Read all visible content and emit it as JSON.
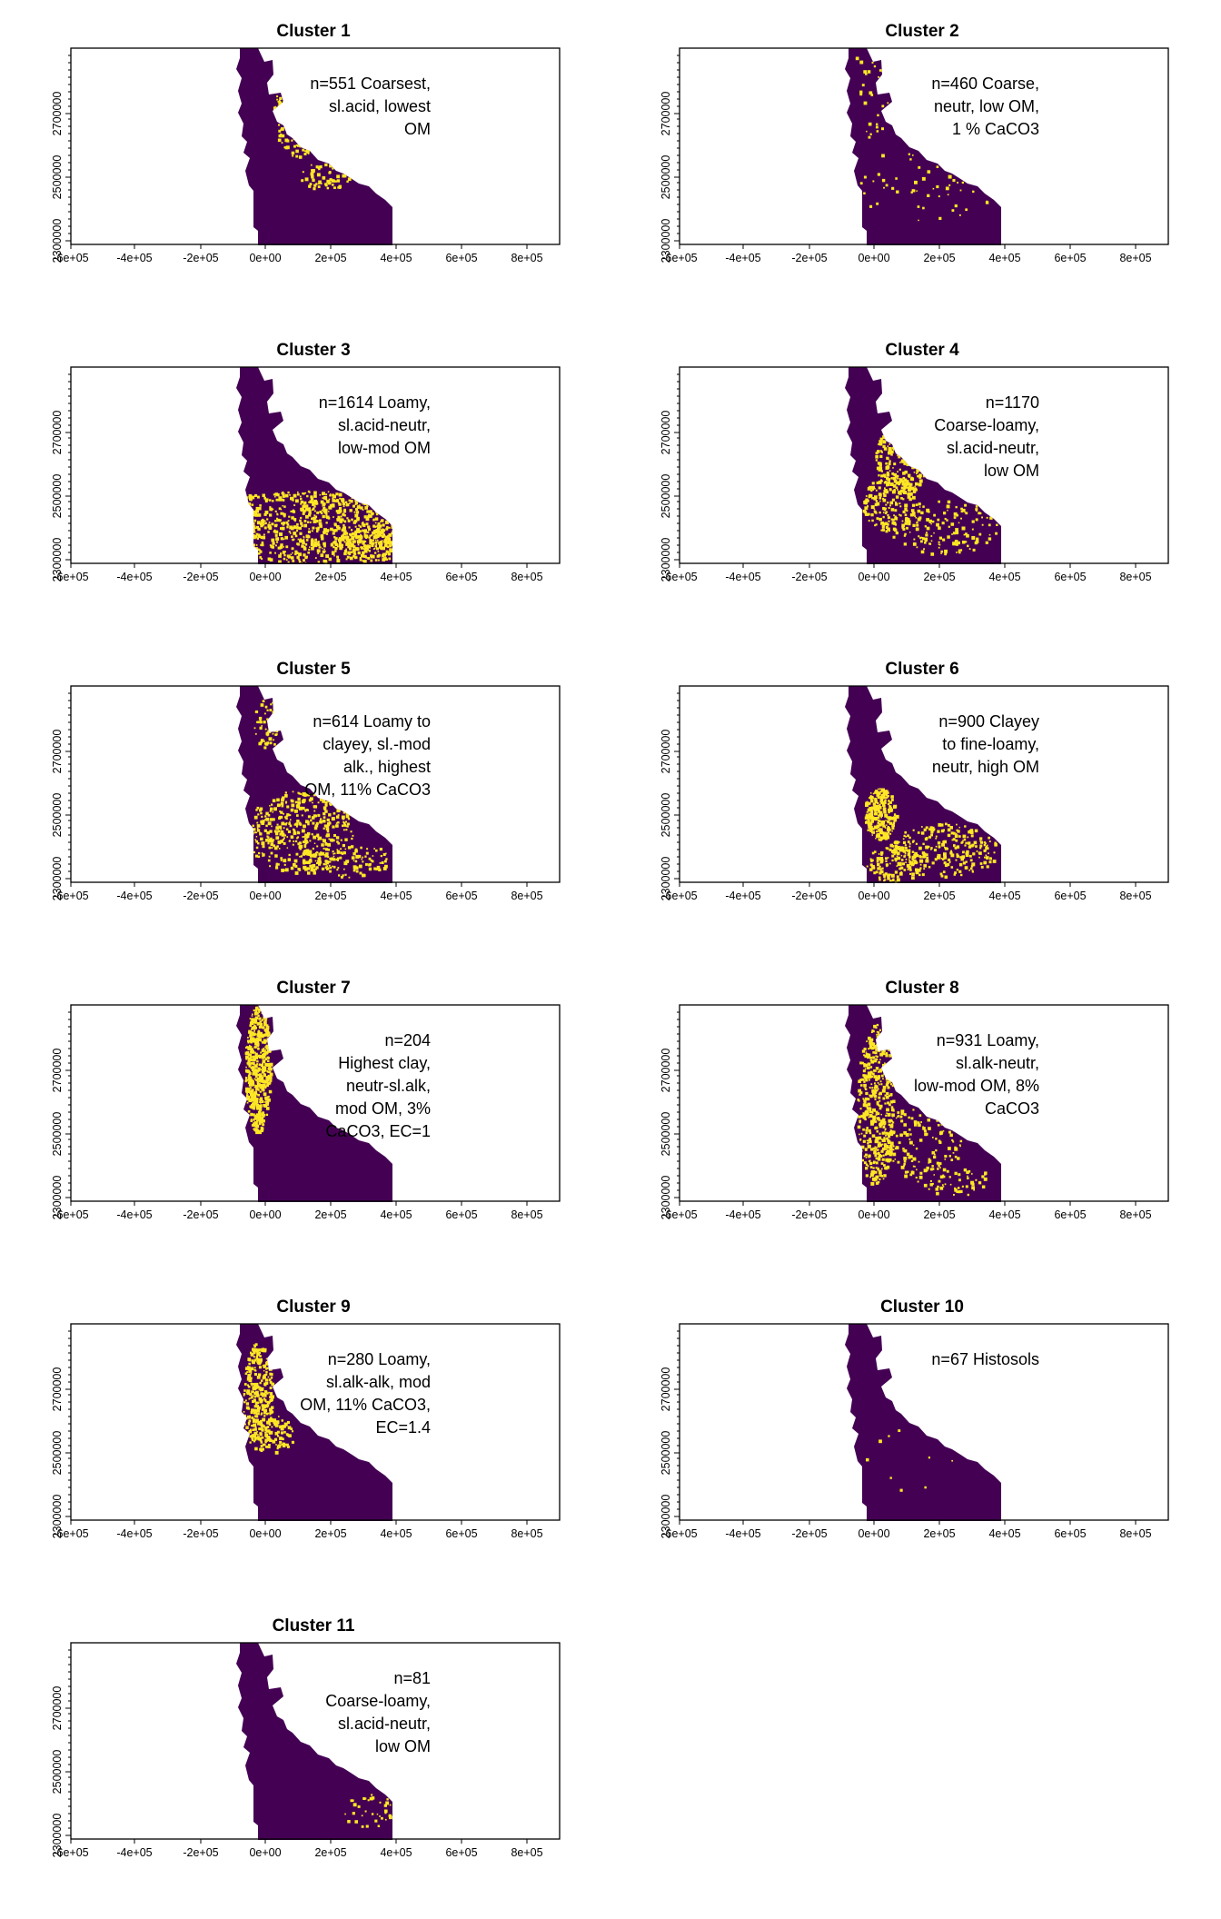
{
  "colors": {
    "background_region": "#440154",
    "cluster_member": "#FDE725",
    "frame": "#000000"
  },
  "chart_data": [
    {
      "type": "heatmap",
      "title": "Cluster 1",
      "annotation": [
        "n=551 Coarsest,",
        "sl.acid, lowest",
        "OM"
      ],
      "xticks": [
        "-6e+05",
        "-4e+05",
        "-2e+05",
        "0e+00",
        "2e+05",
        "4e+05",
        "6e+05",
        "8e+05"
      ],
      "yticks": [
        "2300000",
        "2500000",
        "2700000"
      ],
      "xlim": [
        -600000,
        900000
      ],
      "ylim": [
        2290000,
        2890000
      ],
      "highlight_region": "north-east bay shoreline and coastal margin"
    },
    {
      "type": "heatmap",
      "title": "Cluster 2",
      "annotation": [
        "n=460 Coarse,",
        "neutr, low OM,",
        "1 % CaCO3"
      ],
      "xticks": [
        "-6e+05",
        "-4e+05",
        "-2e+05",
        "0e+00",
        "2e+05",
        "4e+05",
        "6e+05",
        "8e+05"
      ],
      "yticks": [
        "2300000",
        "2500000",
        "2700000"
      ],
      "xlim": [
        -600000,
        900000
      ],
      "ylim": [
        2290000,
        2890000
      ],
      "highlight_region": "sparse, scattered across region"
    },
    {
      "type": "heatmap",
      "title": "Cluster 3",
      "annotation": [
        "n=1614 Loamy,",
        "sl.acid-neutr,",
        "low-mod OM"
      ],
      "xticks": [
        "-6e+05",
        "-4e+05",
        "-2e+05",
        "0e+00",
        "2e+05",
        "4e+05",
        "6e+05",
        "8e+05"
      ],
      "yticks": [
        "2300000",
        "2500000",
        "2700000"
      ],
      "xlim": [
        -600000,
        900000
      ],
      "ylim": [
        2290000,
        2890000
      ],
      "highlight_region": "dense across southern part"
    },
    {
      "type": "heatmap",
      "title": "Cluster 4",
      "annotation": [
        "n=1170",
        "Coarse-loamy,",
        "sl.acid-neutr,",
        "low OM"
      ],
      "xticks": [
        "-6e+05",
        "-4e+05",
        "-2e+05",
        "0e+00",
        "2e+05",
        "4e+05",
        "6e+05",
        "8e+05"
      ],
      "yticks": [
        "2300000",
        "2500000",
        "2700000"
      ],
      "xlim": [
        -600000,
        900000
      ],
      "ylim": [
        2290000,
        2890000
      ],
      "highlight_region": "central band near bay and coast"
    },
    {
      "type": "heatmap",
      "title": "Cluster 5",
      "annotation": [
        "n=614 Loamy to",
        "clayey, sl.-mod",
        "alk., highest",
        "OM, 11% CaCO3"
      ],
      "xticks": [
        "-6e+05",
        "-4e+05",
        "-2e+05",
        "0e+00",
        "2e+05",
        "4e+05",
        "6e+05",
        "8e+05"
      ],
      "yticks": [
        "2300000",
        "2500000",
        "2700000"
      ],
      "xlim": [
        -600000,
        900000
      ],
      "ylim": [
        2290000,
        2890000
      ],
      "highlight_region": "southern-central patches"
    },
    {
      "type": "heatmap",
      "title": "Cluster 6",
      "annotation": [
        "n=900 Clayey",
        "to fine-loamy,",
        "neutr, high OM"
      ],
      "xticks": [
        "-6e+05",
        "-4e+05",
        "-2e+05",
        "0e+00",
        "2e+05",
        "4e+05",
        "6e+05",
        "8e+05"
      ],
      "yticks": [
        "2300000",
        "2500000",
        "2700000"
      ],
      "xlim": [
        -600000,
        900000
      ],
      "ylim": [
        2290000,
        2890000
      ],
      "highlight_region": "western bay arc and southern patches"
    },
    {
      "type": "heatmap",
      "title": "Cluster 7",
      "annotation": [
        "n=204",
        "Highest clay,",
        "neutr-sl.alk,",
        "mod OM, 3%",
        "CaCO3, EC=1"
      ],
      "xticks": [
        "-6e+05",
        "-4e+05",
        "-2e+05",
        "0e+00",
        "2e+05",
        "4e+05",
        "6e+05",
        "8e+05"
      ],
      "yticks": [
        "2300000",
        "2500000",
        "2700000"
      ],
      "xlim": [
        -600000,
        900000
      ],
      "ylim": [
        2290000,
        2890000
      ],
      "highlight_region": "western coastal strip"
    },
    {
      "type": "heatmap",
      "title": "Cluster 8",
      "annotation": [
        "n=931 Loamy,",
        "sl.alk-neutr,",
        "low-mod OM, 8%",
        "CaCO3"
      ],
      "xticks": [
        "-6e+05",
        "-4e+05",
        "-2e+05",
        "0e+00",
        "2e+05",
        "4e+05",
        "6e+05",
        "8e+05"
      ],
      "yticks": [
        "2300000",
        "2500000",
        "2700000"
      ],
      "xlim": [
        -600000,
        900000
      ],
      "ylim": [
        2290000,
        2890000
      ],
      "highlight_region": "western and central belt"
    },
    {
      "type": "heatmap",
      "title": "Cluster 9",
      "annotation": [
        "n=280 Loamy,",
        "sl.alk-alk, mod",
        "OM, 11% CaCO3,",
        "EC=1.4"
      ],
      "xticks": [
        "-6e+05",
        "-4e+05",
        "-2e+05",
        "0e+00",
        "2e+05",
        "4e+05",
        "6e+05",
        "8e+05"
      ],
      "yticks": [
        "2300000",
        "2500000",
        "2700000"
      ],
      "xlim": [
        -600000,
        900000
      ],
      "ylim": [
        2290000,
        2890000
      ],
      "highlight_region": "north-western coast"
    },
    {
      "type": "heatmap",
      "title": "Cluster 10",
      "annotation": [
        "n=67 Histosols"
      ],
      "xticks": [
        "-6e+05",
        "-4e+05",
        "-2e+05",
        "0e+00",
        "2e+05",
        "4e+05",
        "6e+05",
        "8e+05"
      ],
      "yticks": [
        "2300000",
        "2500000",
        "2700000"
      ],
      "xlim": [
        -600000,
        900000
      ],
      "ylim": [
        2290000,
        2890000
      ],
      "highlight_region": "very few isolated cells"
    },
    {
      "type": "heatmap",
      "title": "Cluster 11",
      "annotation": [
        "n=81",
        "Coarse-loamy,",
        "sl.acid-neutr,",
        "low OM"
      ],
      "xticks": [
        "-6e+05",
        "-4e+05",
        "-2e+05",
        "0e+00",
        "2e+05",
        "4e+05",
        "6e+05",
        "8e+05"
      ],
      "yticks": [
        "2300000",
        "2500000",
        "2700000"
      ],
      "xlim": [
        -600000,
        900000
      ],
      "ylim": [
        2290000,
        2890000
      ],
      "highlight_region": "few cells in south-east"
    }
  ]
}
